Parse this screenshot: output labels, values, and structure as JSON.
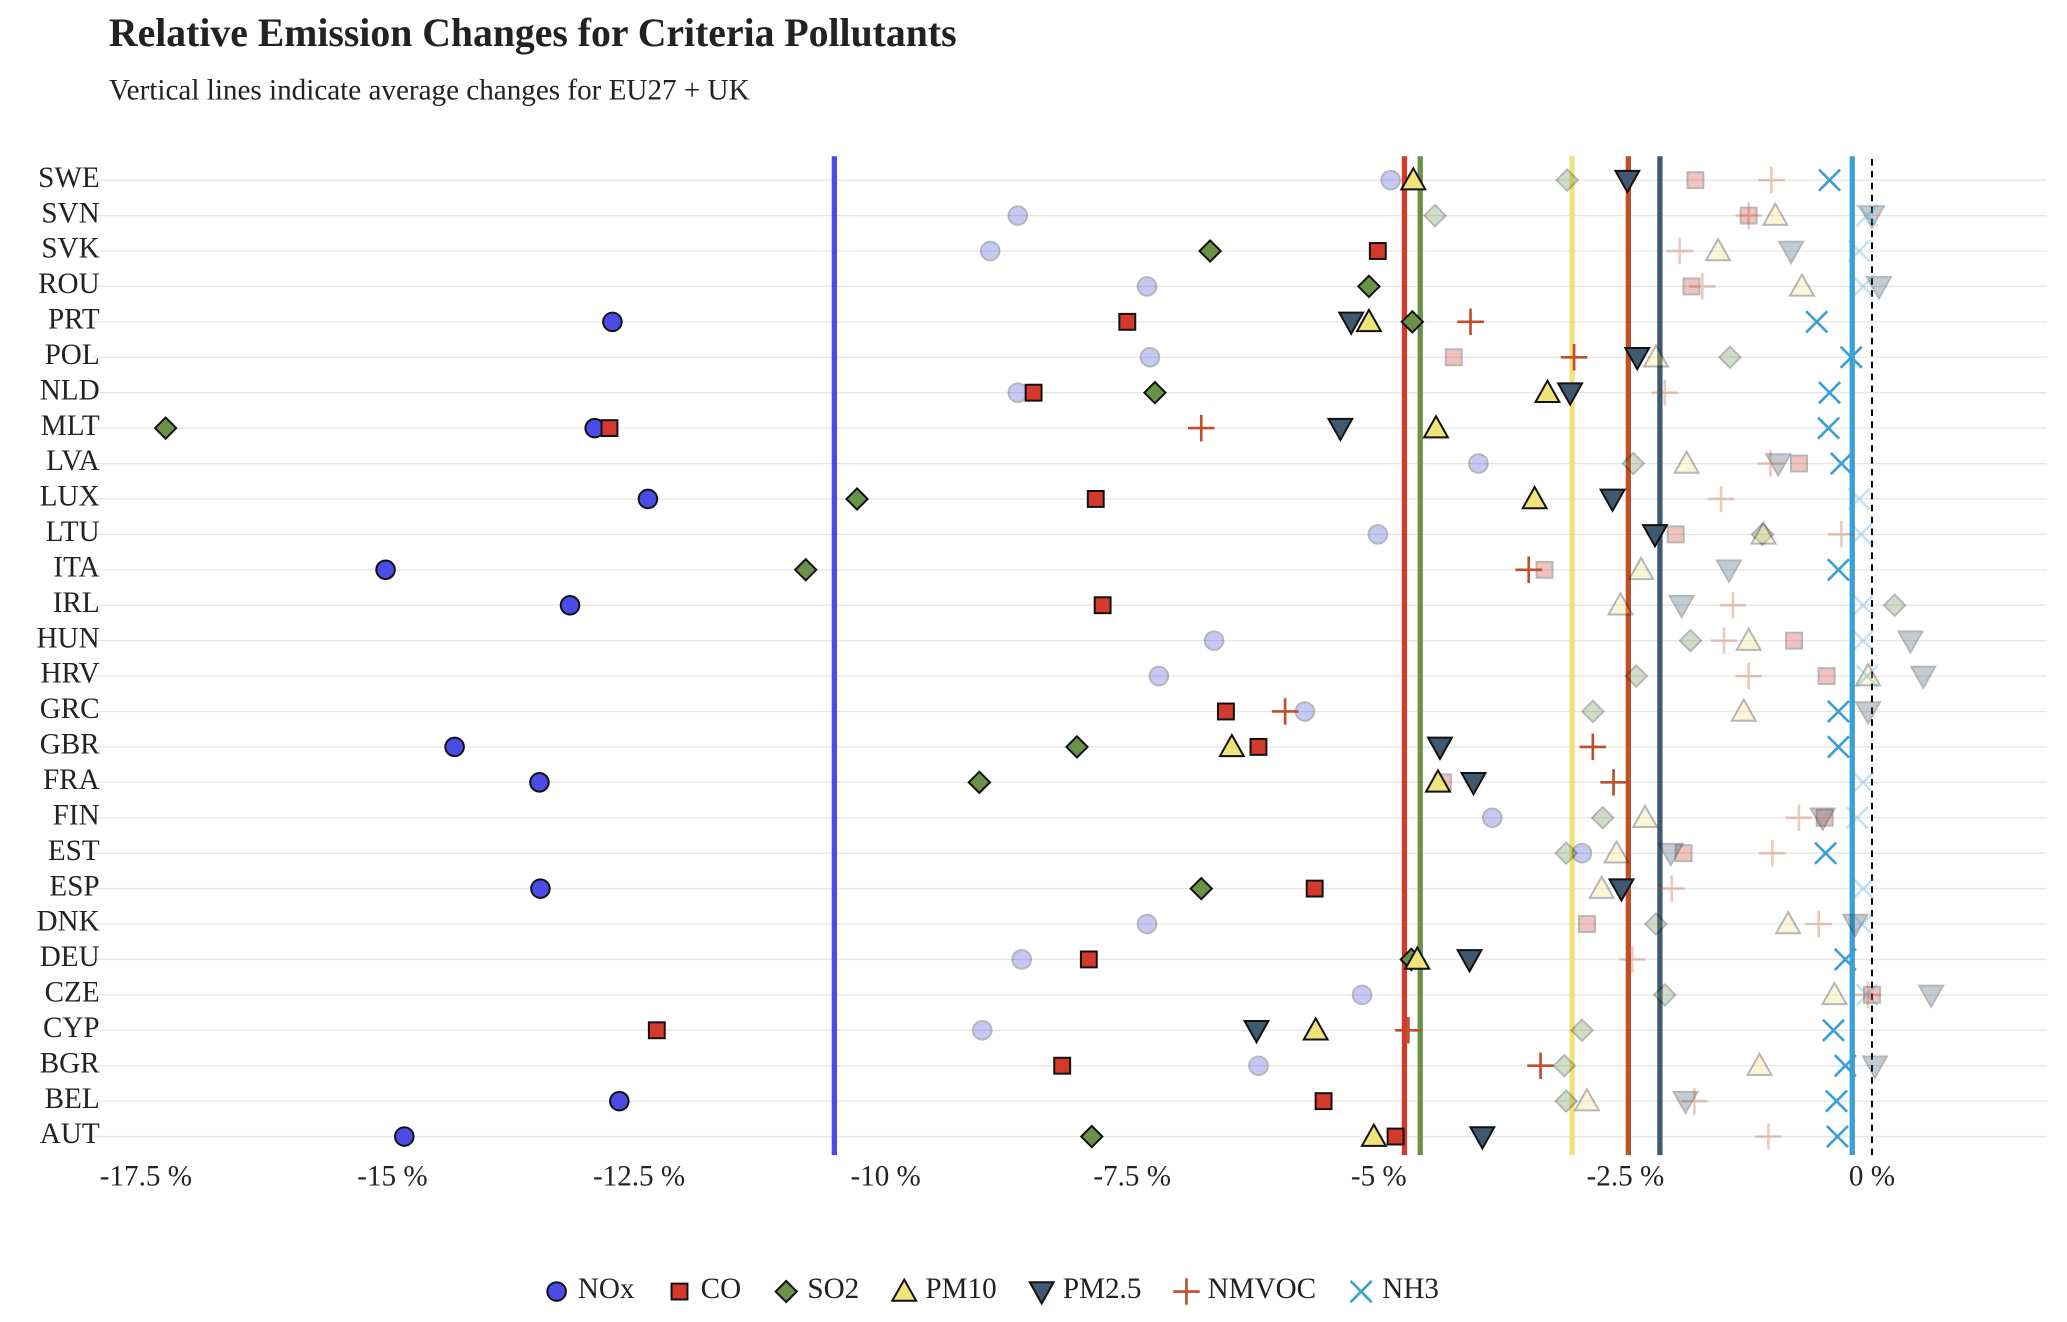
{
  "chart_data": {
    "type": "dot",
    "title": "Relative Emission Changes for Criteria Pollutants",
    "subtitle": "Vertical lines indicate average changes for EU27 + UK",
    "categories": [
      "SWE",
      "SVN",
      "SVK",
      "ROU",
      "PRT",
      "POL",
      "NLD",
      "MLT",
      "LVA",
      "LUX",
      "LTU",
      "ITA",
      "IRL",
      "HUN",
      "HRV",
      "GRC",
      "GBR",
      "FRA",
      "FIN",
      "EST",
      "ESP",
      "DNK",
      "DEU",
      "CZE",
      "CYP",
      "BGR",
      "BEL",
      "AUT"
    ],
    "xlim": [
      -18,
      1.8
    ],
    "xticks": [
      {
        "value": -17.5,
        "label": "-17.5 %"
      },
      {
        "value": -15,
        "label": "-15 %"
      },
      {
        "value": -12.5,
        "label": "-12.5 %"
      },
      {
        "value": -10,
        "label": "-10 %"
      },
      {
        "value": -7.5,
        "label": "-7.5 %"
      },
      {
        "value": -5,
        "label": "-5 %"
      },
      {
        "value": -2.5,
        "label": "-2.5 %"
      },
      {
        "value": 0,
        "label": "0 %"
      }
    ],
    "grid": true,
    "legend": "bottom",
    "series": [
      {
        "name": "NOx",
        "color": "#4b4be6",
        "marker": "circle",
        "average": -10.52,
        "values": [
          -4.88,
          -8.66,
          -8.94,
          -7.35,
          -12.77,
          -7.32,
          -8.66,
          -12.95,
          -3.99,
          -12.41,
          -5.01,
          -15.07,
          -13.2,
          -6.67,
          -7.23,
          -5.75,
          -14.37,
          -13.51,
          -3.85,
          -2.94,
          -13.5,
          -7.35,
          -8.62,
          -5.17,
          -9.02,
          -6.22,
          -12.7,
          -14.88
        ]
      },
      {
        "name": "CO",
        "color": "#d33a2c",
        "marker": "square",
        "average": -4.74,
        "values": [
          -1.79,
          -1.25,
          -5.01,
          -1.83,
          -7.55,
          -4.24,
          -8.5,
          -12.8,
          -0.74,
          -7.87,
          -1.99,
          -3.32,
          -7.8,
          -0.79,
          -0.46,
          -6.55,
          -6.22,
          -4.35,
          -0.48,
          -1.91,
          -5.65,
          -2.89,
          -7.94,
          0.0,
          -12.32,
          -8.21,
          -5.56,
          -4.83
        ]
      },
      {
        "name": "SO2",
        "color": "#6a9148",
        "marker": "diamond",
        "average": -4.58,
        "values": [
          -3.09,
          -4.43,
          -6.71,
          -5.1,
          -4.66,
          -1.44,
          -7.27,
          -17.3,
          -2.42,
          -10.29,
          -1.11,
          -10.81,
          0.23,
          -1.84,
          -2.39,
          -2.83,
          -8.06,
          -9.05,
          -2.73,
          -3.1,
          -6.8,
          -2.19,
          -4.67,
          -2.1,
          -2.94,
          -3.12,
          -3.1,
          -7.91
        ]
      },
      {
        "name": "PM10",
        "color": "#f0e37a",
        "marker": "triangle-up",
        "average": -3.04,
        "values": [
          -4.65,
          -0.98,
          -1.56,
          -0.71,
          -5.1,
          -2.19,
          -3.29,
          -4.42,
          -1.88,
          -3.42,
          -1.1,
          -2.34,
          -2.55,
          -1.25,
          -0.04,
          -1.3,
          -6.49,
          -4.4,
          -2.3,
          -2.59,
          -2.74,
          -0.85,
          -4.61,
          -0.38,
          -5.64,
          -1.14,
          -2.89,
          -5.05
        ]
      },
      {
        "name": "PM2.5",
        "color": "#3f5a70",
        "marker": "triangle-down",
        "average": -2.15,
        "values": [
          -2.48,
          0.0,
          -0.82,
          0.07,
          -5.28,
          -2.38,
          -3.06,
          -5.39,
          -0.95,
          -2.63,
          -2.2,
          -1.45,
          -1.93,
          0.39,
          0.52,
          -0.04,
          -4.38,
          -4.04,
          -0.5,
          -2.04,
          -2.54,
          -0.17,
          -4.08,
          0.6,
          -6.24,
          0.03,
          -1.89,
          -3.95
        ]
      },
      {
        "name": "NMVOC",
        "color": "#bd4f2b",
        "marker": "plus",
        "average": -2.47,
        "values": [
          -1.02,
          -1.25,
          -1.95,
          -1.72,
          -4.07,
          -3.02,
          -2.1,
          -6.8,
          -1.03,
          -1.53,
          -0.31,
          -3.48,
          -1.41,
          -1.5,
          -1.25,
          -5.95,
          -2.83,
          -2.62,
          -0.74,
          -1.01,
          -2.03,
          -0.54,
          -2.43,
          -0.04,
          -4.7,
          -3.36,
          -1.8,
          -1.05
        ]
      },
      {
        "name": "NH3",
        "color": "#3c9fd6",
        "marker": "cross",
        "average": -0.2,
        "values": [
          -0.43,
          -0.05,
          -0.13,
          -0.09,
          -0.56,
          -0.21,
          -0.43,
          -0.44,
          -0.31,
          -0.13,
          -0.11,
          -0.34,
          -0.09,
          -0.09,
          -0.05,
          -0.34,
          -0.34,
          -0.09,
          -0.15,
          -0.47,
          -0.09,
          -0.1,
          -0.27,
          -0.05,
          -0.39,
          -0.27,
          -0.36,
          -0.35
        ]
      }
    ]
  }
}
